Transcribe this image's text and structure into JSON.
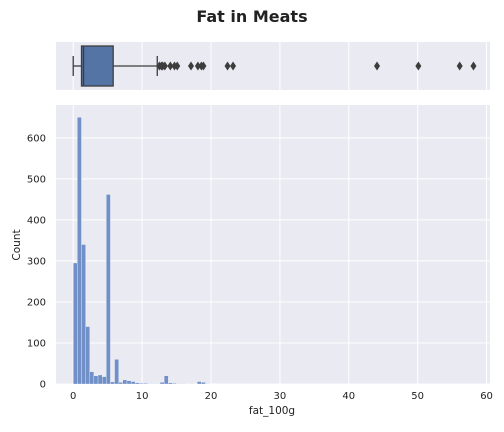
{
  "chart_data": [
    {
      "type": "box",
      "title": "Fat in Meats",
      "orientation": "horizontal",
      "xlim": [
        -2.5,
        60.5
      ],
      "grid": true,
      "whisker_low": 0.0,
      "q1": 1.2,
      "median": 1.5,
      "q3": 5.8,
      "whisker_high": 12.2,
      "outliers": [
        12.5,
        12.8,
        13.0,
        13.3,
        14.1,
        14.7,
        15.1,
        17.1,
        18.1,
        18.6,
        18.9,
        22.4,
        23.2,
        44.1,
        50.1,
        56.1,
        58.1
      ],
      "color": "#5574a6"
    },
    {
      "type": "histogram",
      "xlabel": "fat_100g",
      "ylabel": "Count",
      "xlim": [
        -2.5,
        60.5
      ],
      "ylim": [
        0,
        680
      ],
      "bin_width": 0.6,
      "bins_start": [
        0.0,
        0.6,
        1.2,
        1.8,
        2.4,
        3.0,
        3.6,
        4.2,
        4.8,
        5.4,
        6.0,
        6.6,
        7.2,
        7.8,
        8.4,
        9.0,
        9.6,
        10.2,
        10.8,
        11.4,
        12.0,
        12.6,
        13.2,
        13.8,
        14.4,
        15.0,
        15.6,
        16.2,
        16.8,
        17.4,
        18.0,
        18.6,
        19.2
      ],
      "counts": [
        295,
        650,
        340,
        140,
        30,
        20,
        22,
        18,
        462,
        5,
        60,
        4,
        10,
        8,
        6,
        3,
        2,
        2,
        1,
        1,
        1,
        4,
        20,
        3,
        2,
        1,
        1,
        0,
        1,
        0,
        6,
        4,
        1
      ],
      "xticks": [
        0,
        10,
        20,
        30,
        40,
        50,
        60
      ],
      "yticks": [
        0,
        100,
        200,
        300,
        400,
        500,
        600
      ],
      "grid": true,
      "color": "#6b8cc5"
    }
  ]
}
